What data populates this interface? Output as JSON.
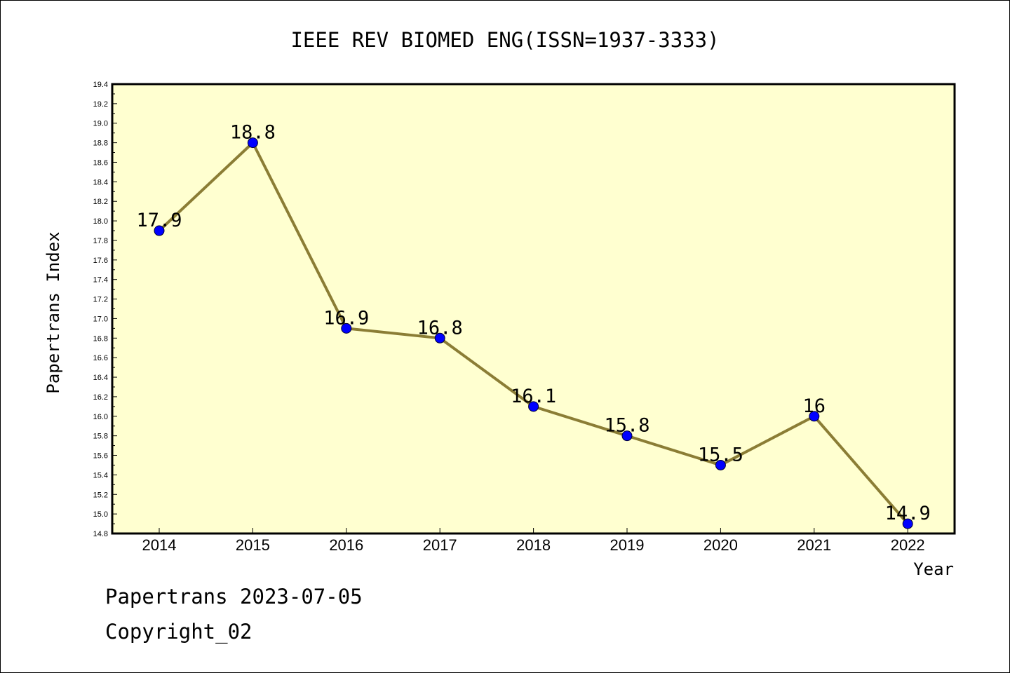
{
  "chart_data": {
    "type": "line",
    "title": "IEEE REV BIOMED ENG(ISSN=1937-3333)",
    "xlabel": "Year",
    "ylabel": "Papertrans Index",
    "categories": [
      "2014",
      "2015",
      "2016",
      "2017",
      "2018",
      "2019",
      "2020",
      "2021",
      "2022"
    ],
    "series": [
      {
        "values": [
          17.9,
          18.8,
          16.9,
          16.8,
          16.1,
          15.8,
          15.5,
          16.0,
          14.9
        ],
        "data_labels": [
          "17.9",
          "18.8",
          "16.9",
          "16.8",
          "16.1",
          "15.8",
          "15.5",
          "16",
          "14.9"
        ]
      }
    ],
    "ylim": [
      14.8,
      19.4
    ],
    "yticks": [
      "14.8",
      "15.0",
      "15.2",
      "15.4",
      "15.6",
      "15.8",
      "16.0",
      "16.2",
      "16.4",
      "16.6",
      "16.8",
      "17.0",
      "17.2",
      "17.4",
      "17.6",
      "17.8",
      "18.0",
      "18.2",
      "18.4",
      "18.6",
      "18.8",
      "19.0",
      "19.2",
      "19.4"
    ],
    "grid": false,
    "colors": {
      "plot_background": "#ffffd0",
      "line": "#8b7d35",
      "marker": "#0000ff"
    }
  },
  "footer": {
    "line1": "Papertrans 2023-07-05",
    "line2": "Copyright_02"
  }
}
